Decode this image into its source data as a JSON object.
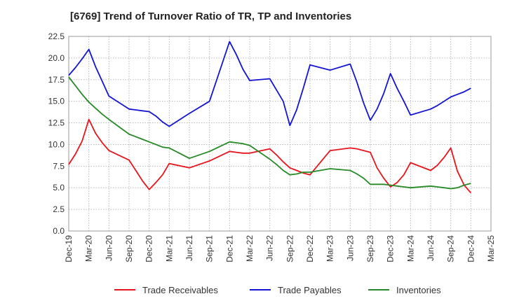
{
  "chart_data": {
    "type": "line",
    "title": "[6769]  Trend of Turnover Ratio of TR, TP and Inventories",
    "xlabel": "",
    "ylabel": "",
    "ylim": [
      0,
      22.5
    ],
    "yticks": [
      "0.0",
      "2.5",
      "5.0",
      "7.5",
      "10.0",
      "12.5",
      "15.0",
      "17.5",
      "20.0",
      "22.5"
    ],
    "x_tick_labels": [
      "Dec-19",
      "Mar-20",
      "Jun-20",
      "Sep-20",
      "Dec-20",
      "Mar-21",
      "Jun-21",
      "Sep-21",
      "Dec-21",
      "Mar-22",
      "Jun-22",
      "Sep-22",
      "Dec-22",
      "Mar-23",
      "Jun-23",
      "Sep-23",
      "Dec-23",
      "Mar-24",
      "Jun-24",
      "Sep-24",
      "Dec-24",
      "Mar-25"
    ],
    "x": [
      "Dec-19",
      "Jan-20",
      "Feb-20",
      "Mar-20",
      "Apr-20",
      "May-20",
      "Jun-20",
      "Sep-20",
      "Oct-20",
      "Nov-20",
      "Dec-20",
      "Jan-21",
      "Feb-21",
      "Mar-21",
      "Jun-21",
      "Sep-21",
      "Dec-21",
      "Jan-22",
      "Feb-22",
      "Mar-22",
      "Jun-22",
      "Jul-22",
      "Aug-22",
      "Sep-22",
      "Oct-22",
      "Nov-22",
      "Dec-22",
      "Mar-23",
      "Jun-23",
      "Jul-23",
      "Aug-23",
      "Sep-23",
      "Oct-23",
      "Nov-23",
      "Dec-23",
      "Jan-24",
      "Feb-24",
      "Mar-24",
      "Jun-24",
      "Jul-24",
      "Aug-24",
      "Sep-24",
      "Oct-24",
      "Nov-24",
      "Dec-24"
    ],
    "series": [
      {
        "name": "Trade Receivables",
        "color": "#e8141c",
        "values": [
          7.7,
          8.9,
          10.4,
          12.9,
          11.3,
          10.2,
          9.3,
          8.2,
          7.0,
          5.8,
          4.8,
          5.6,
          6.5,
          7.8,
          7.3,
          8.1,
          9.2,
          9.1,
          9.0,
          9.0,
          9.5,
          8.8,
          8.0,
          7.3,
          7.0,
          6.7,
          6.5,
          9.3,
          9.6,
          9.5,
          9.3,
          9.1,
          7.3,
          6.1,
          5.1,
          5.6,
          6.5,
          7.9,
          7.0,
          7.6,
          8.5,
          9.6,
          6.9,
          5.3,
          4.4
        ]
      },
      {
        "name": "Trade Payables",
        "color": "#1414d4",
        "values": [
          18.0,
          18.9,
          19.9,
          21.0,
          19.0,
          17.3,
          15.6,
          14.1,
          14.0,
          13.9,
          13.8,
          13.3,
          12.6,
          12.1,
          13.6,
          15.0,
          21.9,
          20.4,
          18.7,
          17.4,
          17.6,
          16.3,
          15.0,
          12.2,
          14.0,
          16.5,
          19.2,
          18.6,
          19.3,
          17.2,
          14.8,
          12.8,
          14.1,
          15.9,
          18.2,
          16.5,
          15.0,
          13.4,
          14.1,
          14.5,
          15.0,
          15.5,
          15.8,
          16.1,
          16.5
        ]
      },
      {
        "name": "Inventories",
        "color": "#268a26",
        "values": [
          17.8,
          16.8,
          15.8,
          14.9,
          14.2,
          13.5,
          12.9,
          11.2,
          10.9,
          10.6,
          10.3,
          10.0,
          9.7,
          9.6,
          8.4,
          9.2,
          10.3,
          10.2,
          10.1,
          9.9,
          8.3,
          7.7,
          7.0,
          6.5,
          6.6,
          6.8,
          6.8,
          7.2,
          7.0,
          6.6,
          6.1,
          5.4,
          5.4,
          5.4,
          5.3,
          5.2,
          5.1,
          5.0,
          5.2,
          5.1,
          5.0,
          4.9,
          5.0,
          5.3,
          5.5
        ]
      }
    ],
    "grid": true,
    "legend": "bottom"
  }
}
